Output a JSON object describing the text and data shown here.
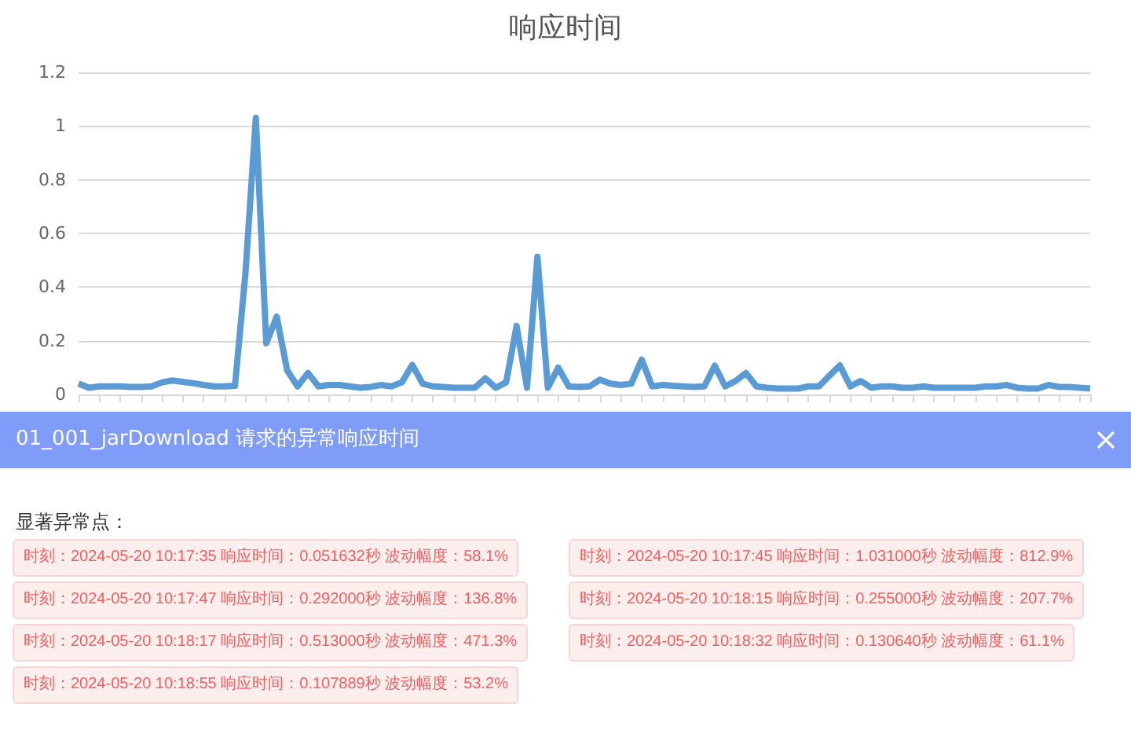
{
  "chart_data": {
    "type": "line",
    "title": "响应时间",
    "categories": [
      null,
      null,
      null,
      null,
      null,
      null,
      null,
      null,
      null,
      null,
      null,
      null,
      null,
      null,
      null,
      null,
      null,
      null,
      null,
      null,
      null,
      null,
      null,
      null,
      null,
      null,
      null,
      null,
      null,
      null,
      null,
      null,
      null,
      null,
      null,
      null,
      null,
      null,
      null,
      null,
      null,
      null,
      null,
      null,
      null,
      null,
      null,
      null,
      null,
      null,
      null,
      null,
      null,
      null,
      null,
      null,
      null,
      null,
      null,
      null,
      null,
      null,
      null,
      null,
      null,
      null,
      null,
      null,
      null,
      null,
      null,
      null,
      null,
      null,
      null,
      null,
      null,
      null,
      null,
      null,
      null,
      null,
      null,
      null,
      null,
      null,
      null,
      null,
      null,
      null,
      null,
      null,
      null,
      null,
      null,
      null,
      null,
      null
    ],
    "series": [
      {
        "color": "#5b9bd5",
        "values": [
          0.04,
          0.025,
          0.03,
          0.03,
          0.03,
          0.028,
          0.028,
          0.03,
          0.045,
          0.052,
          0.047,
          0.042,
          0.035,
          0.03,
          0.03,
          0.032,
          0.45,
          1.03,
          0.19,
          0.29,
          0.09,
          0.03,
          0.08,
          0.03,
          0.035,
          0.035,
          0.03,
          0.025,
          0.028,
          0.035,
          0.03,
          0.045,
          0.11,
          0.04,
          0.03,
          0.028,
          0.025,
          0.025,
          0.025,
          0.06,
          0.025,
          0.045,
          0.255,
          0.025,
          0.513,
          0.025,
          0.1,
          0.03,
          0.028,
          0.03,
          0.055,
          0.04,
          0.035,
          0.04,
          0.13,
          0.03,
          0.035,
          0.032,
          0.03,
          0.028,
          0.03,
          0.107,
          0.03,
          0.05,
          0.08,
          0.03,
          0.025,
          0.022,
          0.022,
          0.022,
          0.03,
          0.03,
          0.07,
          0.108,
          0.03,
          0.05,
          0.025,
          0.03,
          0.03,
          0.025,
          0.025,
          0.03,
          0.025,
          0.025,
          0.025,
          0.025,
          0.025,
          0.03,
          0.03,
          0.035,
          0.025,
          0.022,
          0.022,
          0.035,
          0.028,
          0.028,
          0.025,
          0.022
        ]
      }
    ],
    "ylim": [
      0,
      1.2
    ],
    "yticks": [
      0,
      0.2,
      0.4,
      0.6,
      0.8,
      1,
      1.2
    ],
    "grid": "y",
    "line_style": "solid",
    "tick_labels": "y",
    "annotations": [
      "01_001_jarDownload 请求的异常响应时间",
      "显著异常点：",
      "时刻：2024-05-20 10:17:35 响应时间：0.051632秒  波动幅度：58.1%",
      "时刻：2024-05-20 10:17:45 响应时间：1.031000秒  波动幅度：812.9%",
      "时刻：2024-05-20 10:17:47 响应时间：0.292000秒  波动幅度：136.8%",
      "时刻：2024-05-20 10:18:15 响应时间：0.255000秒  波动幅度：207.7%",
      "时刻：2024-05-20 10:18:17 响应时间：0.513000秒  波动幅度：471.3%",
      "时刻：2024-05-20 10:18:32 响应时间：0.130640秒  波动幅度：61.1%",
      "时刻：2024-05-20 10:18:55 响应时间：0.107889秒  波动幅度：53.2%"
    ]
  }
}
